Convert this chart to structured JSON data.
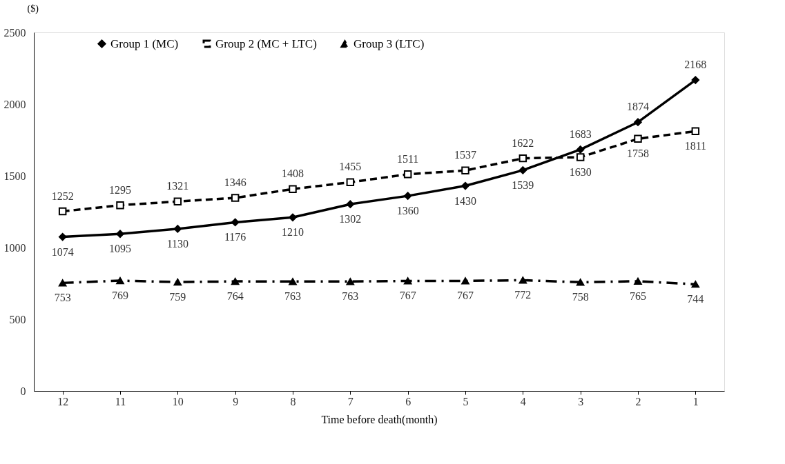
{
  "chart_data": {
    "type": "line",
    "xlabel": "Time before death(month)",
    "ylabel": "($)",
    "categories": [
      "12",
      "11",
      "10",
      "9",
      "8",
      "7",
      "6",
      "5",
      "4",
      "3",
      "2",
      "1"
    ],
    "series": [
      {
        "name": "Group 1 (MC)",
        "color": "#000000",
        "marker": "diamond",
        "line_style": "solid",
        "values": [
          1074,
          1095,
          1130,
          1176,
          1210,
          1302,
          1360,
          1430,
          1539,
          1683,
          1874,
          2168
        ]
      },
      {
        "name": "Group 2 (MC + LTC)",
        "color": "#000000",
        "marker": "square",
        "line_style": "dashed",
        "values": [
          1252,
          1295,
          1321,
          1346,
          1408,
          1455,
          1511,
          1537,
          1622,
          1630,
          1758,
          1811
        ]
      },
      {
        "name": "Group 3 (LTC)",
        "color": "#000000",
        "marker": "triangle",
        "line_style": "dashdot",
        "values": [
          753,
          769,
          759,
          764,
          763,
          763,
          767,
          767,
          772,
          758,
          765,
          744
        ]
      }
    ],
    "ylim": [
      0,
      2500
    ],
    "yticks": [
      0,
      500,
      1000,
      1500,
      2000,
      2500
    ],
    "grid": false,
    "legend": "top",
    "data_labels": true
  }
}
